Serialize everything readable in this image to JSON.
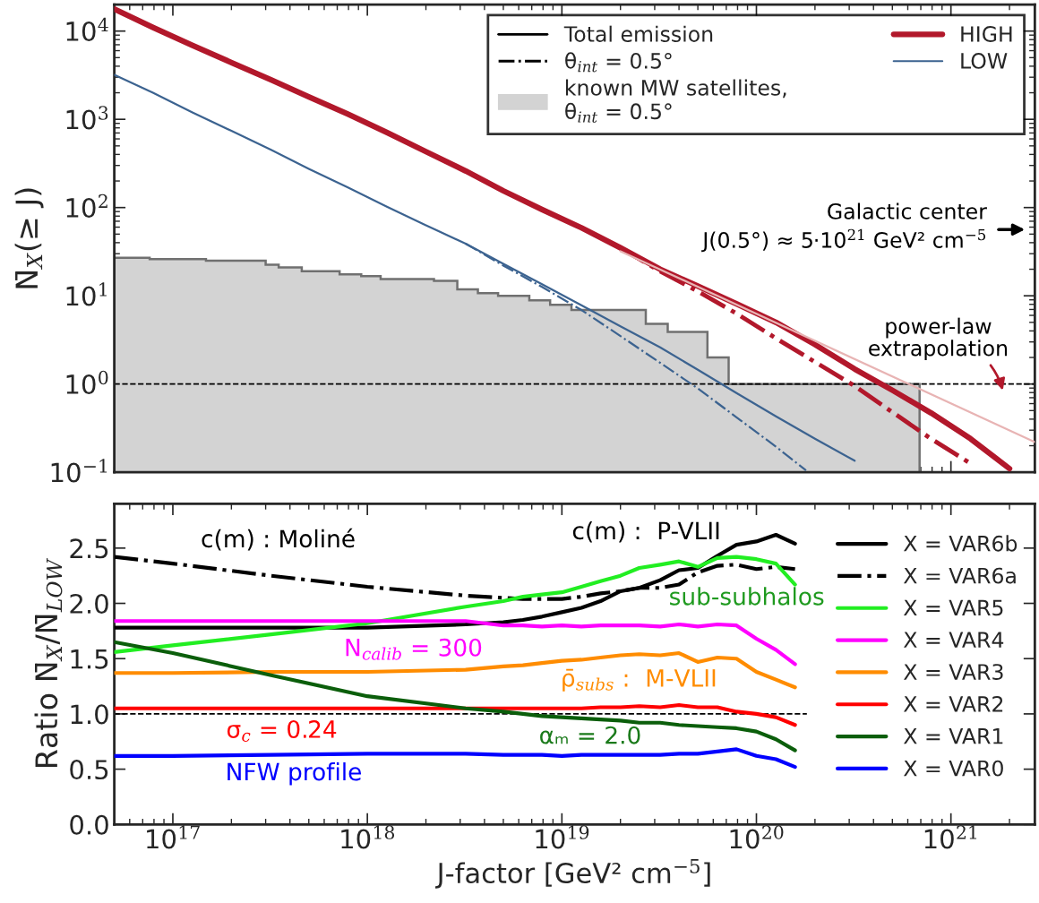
{
  "chart_data": [
    {
      "type": "line",
      "log": "xy",
      "tick_labels": "y",
      "legend": "top right",
      "ylabel": "N̄$_{X}$(≥ J)",
      "xlim": [
        5e+16,
        2.7e+21
      ],
      "xticks": [
        {
          "value": 1e+17,
          "label": null
        },
        {
          "value": 1e+18,
          "label": null
        },
        {
          "value": 1e+19,
          "label": null
        },
        {
          "value": 1e+20,
          "label": null
        },
        {
          "value": 1e+21,
          "label": null
        }
      ],
      "ylim": [
        0.1,
        20000
      ],
      "yticks": [
        {
          "value": 0.1,
          "label": "10$^{−1}$"
        },
        {
          "value": 1,
          "label": "10$^{0}$"
        },
        {
          "value": 10,
          "label": "10$^{1}$"
        },
        {
          "value": 100,
          "label": "10$^{2}$"
        },
        {
          "value": 1000,
          "label": "10$^{3}$"
        },
        {
          "value": 10000,
          "label": "10$^{4}$"
        }
      ],
      "series": [
        {
          "type": "line",
          "name": "HIGH",
          "color": "#b2182b",
          "x": [
            5e+16,
            7.9e+16,
            1.26e+17,
            2e+17,
            3.2e+17,
            5e+17,
            7.9e+17,
            1.26e+18,
            2e+18,
            3.2e+18,
            5e+18,
            7.9e+18,
            1.26e+19,
            2e+19,
            3.2e+19,
            5e+19,
            7.9e+19,
            1.26e+20,
            2e+20,
            3.2e+20,
            5e+20,
            7.9e+20,
            1.26e+21,
            2e+21
          ],
          "values": [
            17800,
            11000,
            6900,
            4400,
            2800,
            1800,
            1150,
            710,
            430,
            260,
            155,
            95,
            59,
            35,
            20,
            12.9,
            8.1,
            5.0,
            2.8,
            1.48,
            0.85,
            0.47,
            0.24,
            0.11
          ]
        },
        {
          "type": "line",
          "line_style": "dashdot",
          "color": "#b2182b",
          "x": [
            2e+19,
            3.2e+19,
            5e+19,
            7.9e+19,
            1.26e+20,
            2e+20,
            3.2e+20,
            5e+20,
            7.9e+20,
            1.26e+21
          ],
          "values": [
            35,
            19,
            11.2,
            6.3,
            3.3,
            1.78,
            0.95,
            0.48,
            0.24,
            0.126
          ]
        },
        {
          "type": "line",
          "name": "LOW",
          "color": "#3c6390",
          "x": [
            5e+16,
            7.9e+16,
            1.26e+17,
            2e+17,
            3.2e+17,
            5e+17,
            7.9e+17,
            1.26e+18,
            2e+18,
            3.2e+18,
            5e+18,
            7.9e+18,
            1.26e+19,
            2e+19,
            3.2e+19,
            5e+19,
            7.9e+19,
            1.26e+20,
            2e+20,
            3.2e+20
          ],
          "values": [
            3200,
            2000,
            1200,
            740,
            450,
            275,
            170,
            102,
            63,
            39,
            23,
            13.5,
            7.8,
            4.5,
            2.6,
            1.45,
            0.79,
            0.43,
            0.24,
            0.135
          ]
        },
        {
          "type": "line",
          "line_style": "dashdot",
          "color": "#3c6390",
          "x": [
            3.2e+18,
            5e+18,
            7.9e+18,
            1.26e+19,
            2e+19,
            3.2e+19,
            5e+19,
            7.9e+19,
            1.26e+20,
            1.8e+20
          ],
          "values": [
            39,
            22,
            12.6,
            6.9,
            3.5,
            1.74,
            0.89,
            0.42,
            0.195,
            0.105
          ]
        },
        {
          "type": "area",
          "name": "known MW satellites,\nθ$_{int}$ = 0.5°",
          "color": "#d3d3d3",
          "x": [
            5e+16,
            7.6e+16,
            1.48e+17,
            3e+17,
            3.5e+17,
            4.6e+17,
            7.2e+17,
            9.3e+17,
            1.17e+18,
            2.2e+18,
            2.9e+18,
            3.7e+18,
            4.7e+18,
            6.8e+18,
            8.7e+18,
            1.12e+19,
            2.7e+19,
            3.5e+19,
            5.6e+19,
            7.2e+19,
            6.9e+20
          ],
          "values": [
            27,
            26,
            25,
            22.5,
            21,
            19,
            17.5,
            16.7,
            15.5,
            14.8,
            11.8,
            10.7,
            10,
            8.9,
            7.9,
            6.9,
            4.8,
            3.9,
            2,
            1,
            1
          ]
        },
        {
          "type": "line",
          "color": "#e8b4b4",
          "x": [
            2e+19,
            2.7e+21
          ],
          "values": [
            32,
            0.22
          ]
        }
      ],
      "ref_lines": [
        {
          "axis": "y",
          "value": 1,
          "line_style": "dashed",
          "color": "#000000"
        }
      ],
      "annotations": [
        "Total emission",
        "θ$_{int}$ = 0.5°",
        "Galactic center\nJ(0.5°) ≈ 5·10$^{21}$ GeV² cm$^{−5}$",
        "power-law\nextrapolation"
      ]
    },
    {
      "type": "line",
      "log": "x",
      "legend": "right",
      "xlabel": "J-factor [GeV² cm$^{−5}$]",
      "ylabel": "Ratio N̄$_{X}$/N̄$_{LOW}$",
      "xlim": [
        5e+16,
        2.7e+21
      ],
      "xticks": [
        {
          "value": 1e+17,
          "label": "10$^{17}$"
        },
        {
          "value": 1e+18,
          "label": "10$^{18}$"
        },
        {
          "value": 1e+19,
          "label": "10$^{19}$"
        },
        {
          "value": 1e+20,
          "label": "10$^{20}$"
        },
        {
          "value": 1e+21,
          "label": "10$^{21}$"
        }
      ],
      "ylim": [
        0,
        2.9
      ],
      "yticks": [
        {
          "value": 0,
          "label": "0.0"
        },
        {
          "value": 0.5,
          "label": "0.5"
        },
        {
          "value": 1,
          "label": "1.0"
        },
        {
          "value": 1.5,
          "label": "1.5"
        },
        {
          "value": 2,
          "label": "2.0"
        },
        {
          "value": 2.5,
          "label": "2.5"
        }
      ],
      "x": [
        5e+16,
        1e+17,
        3.2e+17,
        1e+18,
        3.2e+18,
        5e+18,
        6.3e+18,
        7.9e+18,
        1e+19,
        1.26e+19,
        1.58e+19,
        2e+19,
        2.5e+19,
        3.2e+19,
        4e+19,
        5e+19,
        6.3e+19,
        7.9e+19,
        1e+20,
        1.26e+20,
        1.58e+20
      ],
      "series": [
        {
          "name": "X = VAR6b",
          "color": "#000000",
          "values": [
            1.78,
            1.78,
            1.78,
            1.78,
            1.81,
            1.83,
            1.85,
            1.88,
            1.92,
            1.96,
            2.02,
            2.11,
            2.14,
            2.21,
            2.3,
            2.32,
            2.43,
            2.53,
            2.56,
            2.62,
            2.54
          ]
        },
        {
          "name": "X = VAR6a",
          "color": "#000000",
          "line_style": "dashdot",
          "values": [
            2.42,
            2.36,
            2.25,
            2.15,
            2.07,
            2.05,
            2.04,
            2.04,
            2.04,
            2.06,
            2.09,
            2.11,
            2.14,
            2.14,
            2.17,
            2.28,
            2.34,
            2.35,
            2.31,
            2.33,
            2.31
          ]
        },
        {
          "name": "X = VAR5",
          "color": "#22ee22",
          "values": [
            1.56,
            1.62,
            1.72,
            1.82,
            1.97,
            2.02,
            2.06,
            2.08,
            2.1,
            2.15,
            2.2,
            2.25,
            2.32,
            2.35,
            2.38,
            2.33,
            2.41,
            2.42,
            2.4,
            2.36,
            2.17
          ]
        },
        {
          "name": "X = VAR4",
          "color": "#ff00ff",
          "values": [
            1.84,
            1.84,
            1.84,
            1.84,
            1.84,
            1.8,
            1.8,
            1.79,
            1.8,
            1.79,
            1.8,
            1.8,
            1.8,
            1.79,
            1.81,
            1.79,
            1.81,
            1.8,
            1.68,
            1.58,
            1.45
          ]
        },
        {
          "name": "X = VAR3",
          "color": "#ff8c00",
          "values": [
            1.37,
            1.37,
            1.38,
            1.38,
            1.4,
            1.43,
            1.44,
            1.46,
            1.48,
            1.49,
            1.51,
            1.53,
            1.54,
            1.53,
            1.55,
            1.47,
            1.51,
            1.5,
            1.38,
            1.31,
            1.24
          ]
        },
        {
          "name": "X = VAR2",
          "color": "#ff0000",
          "values": [
            1.05,
            1.05,
            1.05,
            1.05,
            1.05,
            1.05,
            1.05,
            1.05,
            1.05,
            1.05,
            1.06,
            1.06,
            1.07,
            1.06,
            1.08,
            1.06,
            1.06,
            1.02,
            1.0,
            0.97,
            0.9
          ]
        },
        {
          "name": "X = VAR1",
          "color": "#0b5e0b",
          "values": [
            1.65,
            1.55,
            1.35,
            1.16,
            1.05,
            1.02,
            1.0,
            0.98,
            0.97,
            0.96,
            0.95,
            0.94,
            0.92,
            0.92,
            0.9,
            0.89,
            0.88,
            0.87,
            0.84,
            0.77,
            0.67
          ]
        },
        {
          "name": "X = VAR0",
          "color": "#0000ff",
          "values": [
            0.62,
            0.62,
            0.63,
            0.64,
            0.64,
            0.63,
            0.63,
            0.63,
            0.62,
            0.63,
            0.63,
            0.63,
            0.63,
            0.63,
            0.64,
            0.64,
            0.66,
            0.68,
            0.62,
            0.59,
            0.52
          ]
        }
      ],
      "ref_lines": [
        {
          "axis": "y",
          "value": 1,
          "line_style": "dashed",
          "color": "#000000"
        }
      ],
      "annotations": [
        "c(m) : Moliné",
        "c(m) :  P-VLII",
        "sub-subhalos",
        "N$_{calib}$ = 300",
        "ρ̄$_{subs}$ :  M-VLII",
        "σ$_{c}$ = 0.24",
        "αₘ = 2.0",
        "NFW profile"
      ]
    }
  ]
}
